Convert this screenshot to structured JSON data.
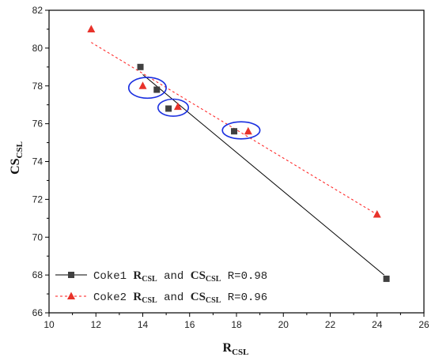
{
  "chart_data": {
    "type": "scatter",
    "xlabel": {
      "main": "R",
      "sub": "CSL"
    },
    "ylabel": {
      "main": "CS",
      "sub": "CSL"
    },
    "xlim": [
      10,
      26
    ],
    "ylim": [
      66,
      82
    ],
    "x_ticks": [
      "10",
      "12",
      "14",
      "16",
      "18",
      "20",
      "22",
      "24",
      "26"
    ],
    "y_ticks": [
      "66",
      "68",
      "70",
      "72",
      "74",
      "76",
      "78",
      "80",
      "82"
    ],
    "series": [
      {
        "name": "Coke1",
        "marker": "square",
        "color": "#404040",
        "line_color": "#000000",
        "line_style": "solid",
        "points": [
          [
            13.9,
            79.0
          ],
          [
            14.6,
            77.8
          ],
          [
            15.1,
            76.8
          ],
          [
            17.9,
            75.6
          ],
          [
            24.4,
            67.8
          ]
        ],
        "fit_line": [
          [
            14.0,
            78.6
          ],
          [
            24.3,
            68.0
          ]
        ],
        "legend": {
          "prefix": "Coke1 ",
          "r": "R",
          "r_sub": "CSL",
          "and": " and ",
          "cs": "CS",
          "cs_sub": "CSL",
          "stat": " R=0.98"
        }
      },
      {
        "name": "Coke2",
        "marker": "triangle",
        "color": "#e8322a",
        "line_color": "#ff1a1a",
        "line_style": "dashed",
        "points": [
          [
            11.8,
            81.0
          ],
          [
            14.0,
            78.0
          ],
          [
            15.5,
            76.9
          ],
          [
            18.5,
            75.6
          ],
          [
            24.0,
            71.2
          ]
        ],
        "fit_line": [
          [
            11.8,
            80.3
          ],
          [
            24.0,
            71.2
          ]
        ],
        "legend": {
          "prefix": "Coke2 ",
          "r": "R",
          "r_sub": "CSL",
          "and": " and ",
          "cs": "CS",
          "cs_sub": "CSL",
          "stat": " R=0.96"
        }
      }
    ],
    "annotations": [
      {
        "type": "ellipse",
        "color": "#1a2fe0",
        "center": [
          14.2,
          77.9
        ],
        "rx": 0.8,
        "ry": 0.55
      },
      {
        "type": "ellipse",
        "color": "#1a2fe0",
        "center": [
          15.3,
          76.85
        ],
        "rx": 0.65,
        "ry": 0.45
      },
      {
        "type": "ellipse",
        "color": "#1a2fe0",
        "center": [
          18.2,
          75.65
        ],
        "rx": 0.8,
        "ry": 0.45
      }
    ],
    "legend_position": "bottom-left",
    "grid": false
  }
}
